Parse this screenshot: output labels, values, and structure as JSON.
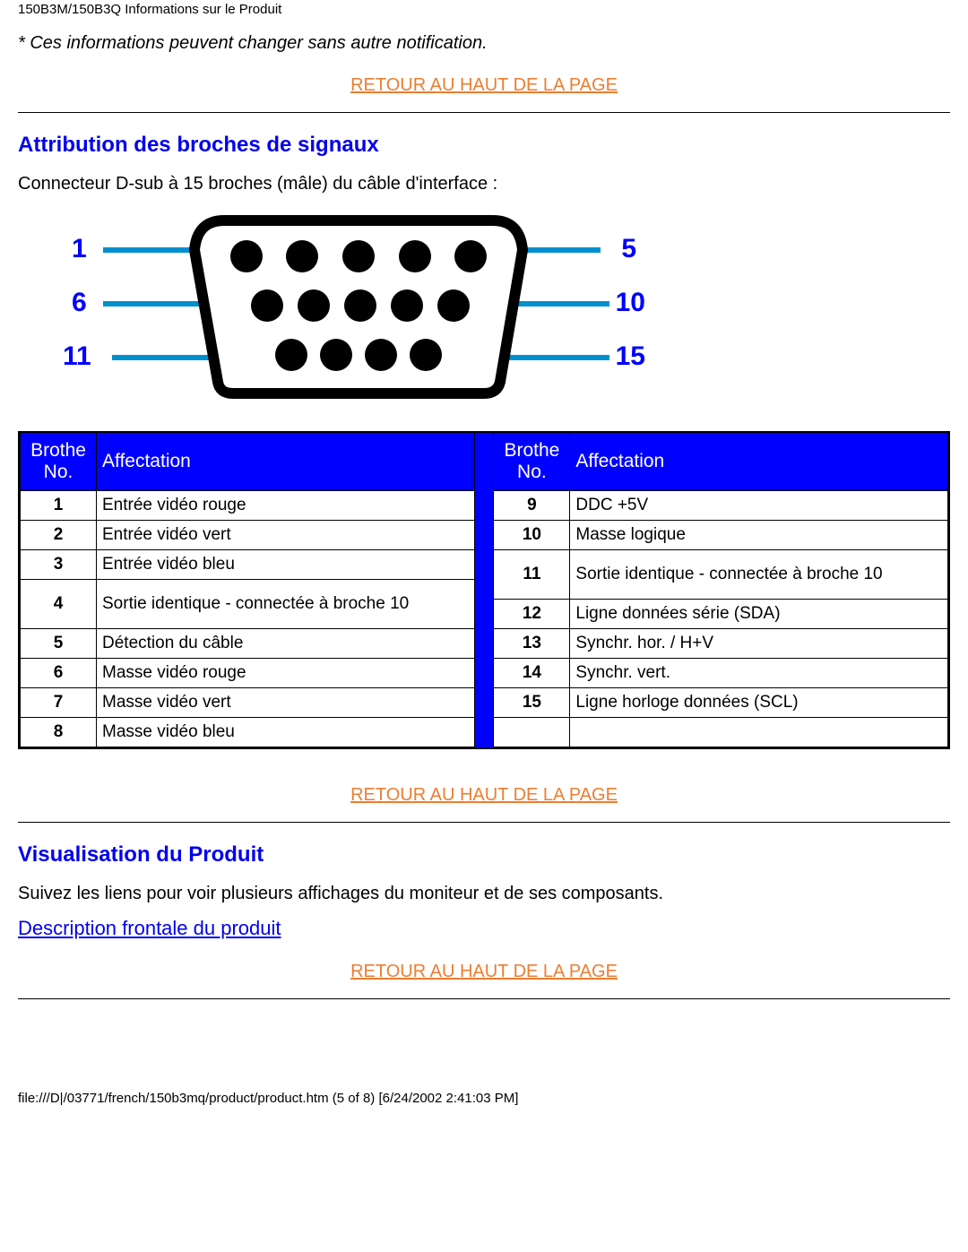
{
  "header": "150B3M/150B3Q Informations sur le Produit",
  "notice": "* Ces informations peuvent changer sans autre notification.",
  "returnTopLabel": "RETOUR AU HAUT DE LA PAGE",
  "section1_title": "Attribution des broches de signaux",
  "connectorText": "Connecteur D-sub à 15 broches (mâle) du câble d'interface :",
  "diagram": {
    "labels": [
      "1",
      "5",
      "6",
      "10",
      "11",
      "15"
    ],
    "pin_fill": "#000000",
    "label_color": "#0000ff",
    "line_color": "#008fcf",
    "outline_color": "#000000",
    "outline_width": 10,
    "pin_r": 18
  },
  "tableHeaders": {
    "no": "Brothe No.",
    "assign": "Affectation"
  },
  "pinsLeft": [
    {
      "n": "1",
      "a": "Entrée vidéo rouge"
    },
    {
      "n": "2",
      "a": "Entrée vidéo vert"
    },
    {
      "n": "3",
      "a": "Entrée vidéo bleu"
    },
    {
      "n": "4",
      "a": "Sortie identique - connectée à broche 10"
    },
    {
      "n": "5",
      "a": "Détection du câble"
    },
    {
      "n": "6",
      "a": "Masse vidéo rouge"
    },
    {
      "n": "7",
      "a": "Masse vidéo vert"
    },
    {
      "n": "8",
      "a": "Masse vidéo bleu"
    }
  ],
  "pinsRight": [
    {
      "n": "9",
      "a": "DDC +5V"
    },
    {
      "n": "10",
      "a": "Masse logique"
    },
    {
      "n": "11",
      "a": "Sortie identique - connectée à broche 10"
    },
    {
      "n": "12",
      "a": "Ligne données série (SDA)"
    },
    {
      "n": "13",
      "a": "Synchr. hor. / H+V"
    },
    {
      "n": "14",
      "a": "Synchr. vert."
    },
    {
      "n": "15",
      "a": "Ligne horloge données (SCL)"
    },
    {
      "n": "",
      "a": ""
    }
  ],
  "section2_title": "Visualisation du Produit",
  "section2_text": "Suivez les liens pour voir plusieurs affichages du moniteur et de ses composants.",
  "frontLink": "Description frontale du produit",
  "footer": "file:///D|/03771/french/150b3mq/product/product.htm (5 of 8) [6/24/2002 2:41:03 PM]"
}
